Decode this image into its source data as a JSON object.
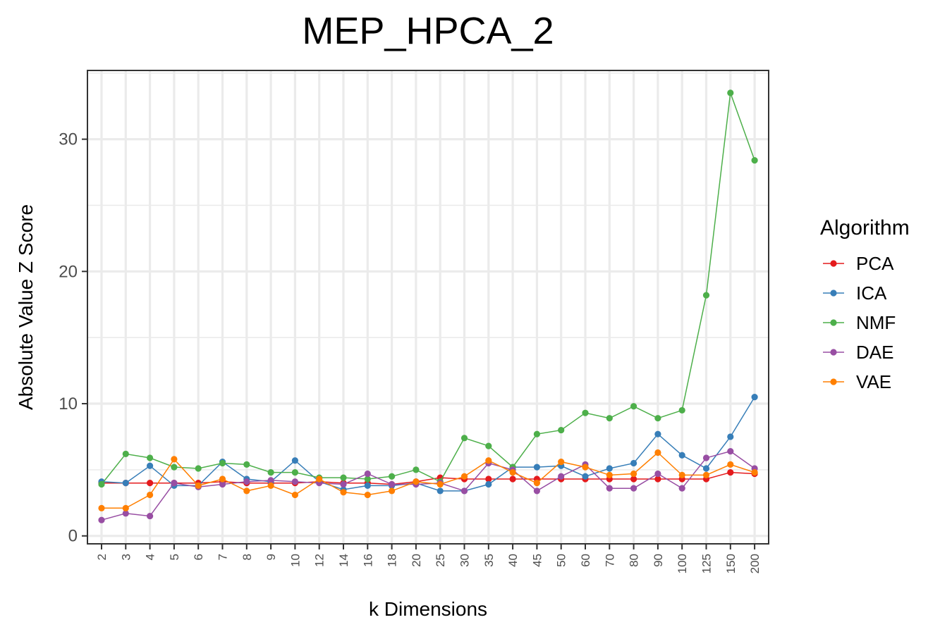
{
  "chart_data": {
    "type": "line",
    "title": "MEP_HPCA_2",
    "xlabel": "k Dimensions",
    "ylabel": "Absolute Value Z Score",
    "x": [
      "2",
      "3",
      "4",
      "5",
      "6",
      "7",
      "8",
      "9",
      "10",
      "12",
      "14",
      "16",
      "18",
      "20",
      "25",
      "30",
      "35",
      "40",
      "45",
      "50",
      "60",
      "70",
      "80",
      "90",
      "100",
      "125",
      "150",
      "200"
    ],
    "ylim": [
      -0.6,
      35.2
    ],
    "yticks": [
      0,
      10,
      20,
      30
    ],
    "grid": true,
    "legend": {
      "title": "Algorithm",
      "position": "right"
    },
    "series": [
      {
        "name": "PCA",
        "color": "#e41a1c",
        "values": [
          4.0,
          4.0,
          4.0,
          4.0,
          4.0,
          4.1,
          4.0,
          4.0,
          4.0,
          4.1,
          4.0,
          4.0,
          3.9,
          4.1,
          4.4,
          4.3,
          4.3,
          4.3,
          4.3,
          4.3,
          4.3,
          4.3,
          4.3,
          4.3,
          4.3,
          4.3,
          4.8,
          4.7
        ]
      },
      {
        "name": "ICA",
        "color": "#377eb8",
        "values": [
          4.1,
          4.0,
          5.3,
          3.8,
          3.8,
          5.6,
          4.3,
          4.1,
          5.7,
          4.1,
          3.5,
          3.8,
          3.8,
          4.0,
          3.4,
          3.4,
          3.9,
          5.2,
          5.2,
          5.3,
          4.5,
          5.1,
          5.5,
          7.7,
          6.1,
          5.1,
          7.5,
          10.5
        ]
      },
      {
        "name": "NMF",
        "color": "#4daf4a",
        "values": [
          3.9,
          6.2,
          5.9,
          5.2,
          5.1,
          5.5,
          5.4,
          4.8,
          4.8,
          4.4,
          4.4,
          4.3,
          4.5,
          5.0,
          4.1,
          7.4,
          6.8,
          5.2,
          7.7,
          8.0,
          9.3,
          8.9,
          9.8,
          8.9,
          9.5,
          18.2,
          33.5,
          28.4
        ]
      },
      {
        "name": "DAE",
        "color": "#984ea3",
        "values": [
          1.2,
          1.7,
          1.5,
          4.0,
          3.7,
          3.9,
          4.1,
          4.2,
          4.1,
          4.0,
          3.9,
          4.7,
          3.9,
          3.9,
          4.0,
          3.4,
          5.5,
          5.0,
          3.4,
          4.5,
          5.4,
          3.6,
          3.6,
          4.7,
          3.6,
          5.9,
          6.4,
          5.1
        ]
      },
      {
        "name": "VAE",
        "color": "#ff7f00",
        "values": [
          2.1,
          2.1,
          3.1,
          5.8,
          3.8,
          4.3,
          3.4,
          3.8,
          3.1,
          4.3,
          3.3,
          3.1,
          3.4,
          4.1,
          3.9,
          4.5,
          5.7,
          4.8,
          4.0,
          5.6,
          5.2,
          4.6,
          4.7,
          6.3,
          4.6,
          4.6,
          5.4,
          4.8
        ]
      }
    ]
  }
}
